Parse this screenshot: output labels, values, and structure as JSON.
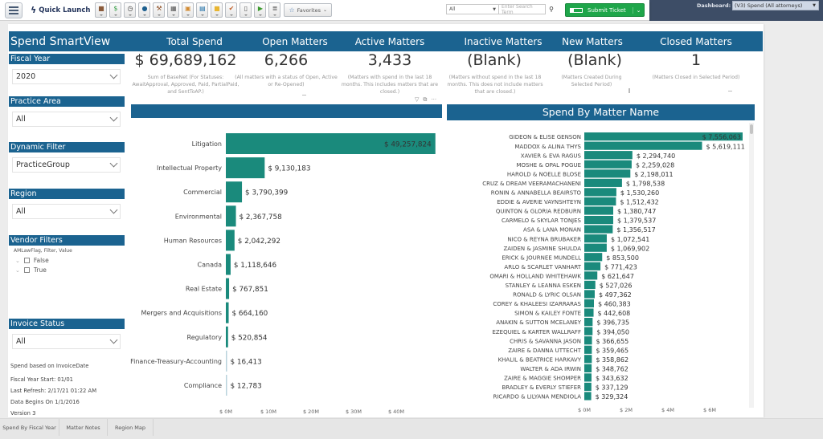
{
  "toolbar": {
    "quick_launch_label": "Quick Launch",
    "quick_launch_icons": [
      {
        "name": "briefcase-icon",
        "glyph": "■",
        "color": "#8a5a3a"
      },
      {
        "name": "dollar-icon",
        "glyph": "$",
        "color": "#2e9a3e"
      },
      {
        "name": "clock-icon",
        "glyph": "◷",
        "color": "#333333"
      },
      {
        "name": "person-icon",
        "glyph": "●",
        "color": "#1c5f8f"
      },
      {
        "name": "gavel-icon",
        "glyph": "⚒",
        "color": "#8a4a1f"
      },
      {
        "name": "table-icon",
        "glyph": "▦",
        "color": "#555555"
      },
      {
        "name": "calendar-icon",
        "glyph": "▣",
        "color": "#d28b33"
      },
      {
        "name": "contact-card-icon",
        "glyph": "▤",
        "color": "#1c6ea6"
      },
      {
        "name": "note-icon",
        "glyph": "■",
        "color": "#e8b531"
      },
      {
        "name": "checkmark-icon",
        "glyph": "✔",
        "color": "#c0602a"
      },
      {
        "name": "document-icon",
        "glyph": "▯",
        "color": "#555555"
      },
      {
        "name": "play-icon",
        "glyph": "▶",
        "color": "#3c9a2e"
      },
      {
        "name": "database-icon",
        "glyph": "≣",
        "color": "#555555"
      }
    ],
    "favorites_label": "Favorites",
    "search_scope": "All",
    "search_placeholder": "Enter Search Term",
    "submit_ticket_label": "Submit Ticket",
    "dashboard_label": "Dashboard:",
    "dashboard_value": "(V3) Spend (All attorneys)"
  },
  "report": {
    "title": "Spend SmartView",
    "kpis": [
      {
        "title": "Total Spend",
        "value": "$ 69,689,162",
        "description": "Sum of BaseNet (For Statuses: AwaitApproval, Approved, Paid, PartialPaid, and SentToAP.)"
      },
      {
        "title": "Open Matters",
        "value": "6,266",
        "description": "(All matters with a status of Open, Active or Re-Opened)"
      },
      {
        "title": "Active Matters",
        "value": "3,433",
        "description": "(Matters with spend in the last 18 months. This includes matters that are closed.)"
      },
      {
        "title": "Inactive Matters",
        "value": "(Blank)",
        "description": "(Matters without spend in the last 18 months. This does not include matters that are closed.)"
      },
      {
        "title": "New Matters",
        "value": "(Blank)",
        "description": "(Matters Created During Selected Period)"
      },
      {
        "title": "Closed Matters",
        "value": "1",
        "description": "(Matters Closed in Selected Period)"
      }
    ],
    "slicers": [
      {
        "label": "Fiscal Year",
        "value": "2020"
      },
      {
        "label": "Practice Area",
        "value": "All"
      },
      {
        "label": "Dynamic Filter",
        "value": "PracticeGroup"
      },
      {
        "label": "Region",
        "value": "All"
      },
      {
        "label": "Invoice Status",
        "value": "All"
      }
    ],
    "vendor_filters": {
      "label": "Vendor Filters",
      "subtitle": "AMLawFlag, Filter, Value",
      "options": [
        "False",
        "True"
      ]
    },
    "notes": [
      "Spend based on InvoiceDate",
      "Fiscal Year Start: 01/01",
      "Last Refresh: 2/17/21 01:22 AM",
      "Data Begins On 1/1/2016",
      "Version 3"
    ]
  },
  "colors": {
    "header_blue": "#1b6390",
    "bar_teal": "#1a8a7c",
    "submit_green": "#1fa64a"
  },
  "chart_data": [
    {
      "type": "bar",
      "orientation": "horizontal",
      "title": "",
      "categories": [
        "Litigation",
        "Intellectual Property",
        "Commercial",
        "Environmental",
        "Human Resources",
        "Canada",
        "Real Estate",
        "Mergers and Acquisitions",
        "Regulatory",
        "Finance-Treasury-Accounting",
        "Compliance"
      ],
      "values": [
        49257824,
        9130183,
        3790399,
        2367758,
        2042292,
        1118646,
        767851,
        664160,
        520854,
        16413,
        12783
      ],
      "labels": [
        "$ 49,257,824",
        "$ 9,130,183",
        "$ 3,790,399",
        "$ 2,367,758",
        "$ 2,042,292",
        "$ 1,118,646",
        "$ 767,851",
        "$ 664,160",
        "$ 520,854",
        "$ 16,413",
        "$ 12,783"
      ],
      "xticks": [
        "$ 0M",
        "$ 10M",
        "$ 20M",
        "$ 30M",
        "$ 40M"
      ],
      "xlim": [
        0,
        50000000
      ],
      "grid": false
    },
    {
      "type": "bar",
      "orientation": "horizontal",
      "title": "Spend By Matter Name",
      "categories": [
        "GIDEON & ELISE GENSON",
        "MADDOX & ALINA THYS",
        "XAVIER & EVA RAGUS",
        "MOSHE & OPAL POGUE",
        "HAROLD & NOELLE BLOSE",
        "CRUZ & DREAM VEERAMACHANENI",
        "RONIN & ANNABELLA BEAIRSTO",
        "EDDIE & AVERIE VAYNSHTEYN",
        "QUINTON & GLORIA REDBURN",
        "CARMELO & SKYLAR TONJES",
        "ASA & LANA MONAN",
        "NICO & REYNA BRUBAKER",
        "ZAIDEN & JASMINE SHULDA",
        "ERICK & JOURNEE MUNDELL",
        "ARLO & SCARLET VANHART",
        "OMARI & HOLLAND WHITEHAWK",
        "STANLEY & LEANNA ESKEN",
        "RONALD & LYRIC OLSAN",
        "COREY & KHALEESI IZARRARAS",
        "SIMON & KAILEY FONTE",
        "ANAKIN & SUTTON MCELANEY",
        "EZEQUIEL & KARTER WALLRAFF",
        "CHRIS & SAVANNA JASON",
        "ZAIRE & DANNA UTTECHT",
        "KHALIL & BEATRICE HARKAVY",
        "WALTER & ADA IRWIN",
        "ZAIRE & MAGGIE SHOMPER",
        "BRADLEY & EVERLY STIEFER",
        "RICARDO & LILYANA MENDIOLA"
      ],
      "values": [
        7556063,
        5619111,
        2294740,
        2259028,
        2198011,
        1798538,
        1530260,
        1512432,
        1380747,
        1379537,
        1356517,
        1072541,
        1069902,
        853500,
        771423,
        621647,
        527026,
        497362,
        460383,
        442608,
        396735,
        394050,
        366655,
        359465,
        358862,
        348762,
        343632,
        337129,
        329324
      ],
      "labels": [
        "$ 7,556,063",
        "$ 5,619,111",
        "$ 2,294,740",
        "$ 2,259,028",
        "$ 2,198,011",
        "$ 1,798,538",
        "$ 1,530,260",
        "$ 1,512,432",
        "$ 1,380,747",
        "$ 1,379,537",
        "$ 1,356,517",
        "$ 1,072,541",
        "$ 1,069,902",
        "$ 853,500",
        "$ 771,423",
        "$ 621,647",
        "$ 527,026",
        "$ 497,362",
        "$ 460,383",
        "$ 442,608",
        "$ 396,735",
        "$ 394,050",
        "$ 366,655",
        "$ 359,465",
        "$ 358,862",
        "$ 348,762",
        "$ 343,632",
        "$ 337,129",
        "$ 329,324"
      ],
      "xticks": [
        "$ 0M",
        "$ 2M",
        "$ 4M",
        "$ 6M"
      ],
      "xlim": [
        0,
        7800000
      ],
      "grid": false
    }
  ],
  "page_tabs": [
    "Spend By Fiscal Year",
    "Matter Notes",
    "Region Map"
  ]
}
